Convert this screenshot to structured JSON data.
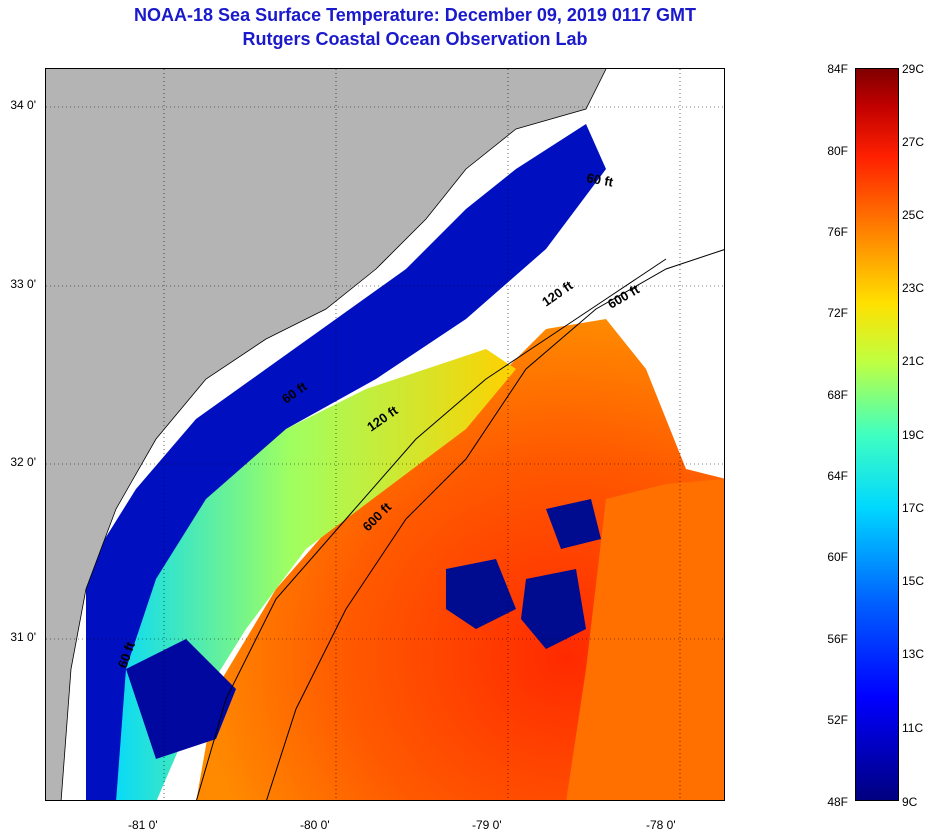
{
  "title": "NOAA-18 Sea Surface Temperature:  December 09, 2019 0117 GMT",
  "subtitle": "Rutgers Coastal Ocean Observation Lab",
  "lat_labels": [
    "34 0'",
    "33 0'",
    "32 0'",
    "31 0'"
  ],
  "lon_labels": [
    "-81 0'",
    "-80 0'",
    "-79 0'",
    "-78 0'"
  ],
  "contour_labels": [
    "60 ft",
    "120 ft",
    "600 ft",
    "60 ft",
    "120 ft",
    "600 ft",
    "60 ft"
  ],
  "colorbar": {
    "fahrenheit": [
      "84F",
      "80F",
      "76F",
      "72F",
      "68F",
      "64F",
      "60F",
      "56F",
      "52F",
      "48F"
    ],
    "celsius": [
      "29C",
      "27C",
      "25C",
      "23C",
      "21C",
      "19C",
      "17C",
      "15C",
      "13C",
      "11C",
      "9C"
    ]
  },
  "colors": {
    "land": "#b4b4b4",
    "cloud": "#ffffff",
    "title": "#1a1acc"
  }
}
